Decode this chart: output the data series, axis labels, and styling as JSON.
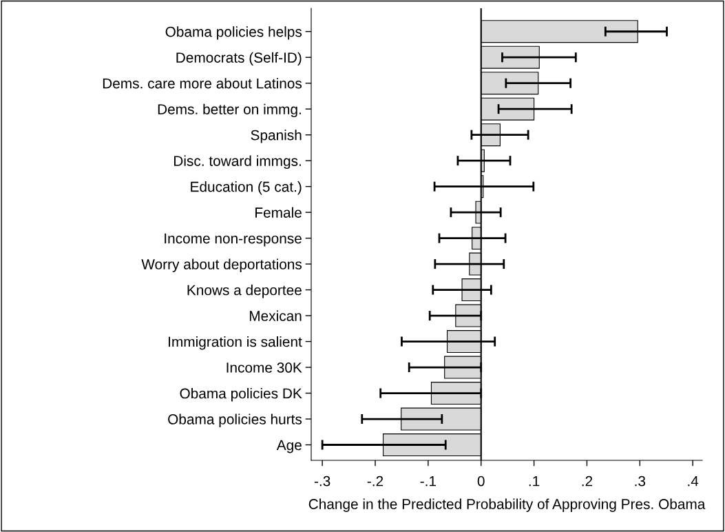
{
  "chart_data": {
    "type": "bar",
    "orientation": "horizontal",
    "xlabel": "Change in the Predicted Probability of Approving Pres. Obama",
    "categories": [
      "Obama policies helps",
      "Democrats (Self-ID)",
      "Dems. care more about Latinos",
      "Dems. better on immg.",
      "Spanish",
      "Disc. toward immgs.",
      "Education (5 cat.)",
      "Female",
      "Income non-response",
      "Worry about deportations",
      "Knows a deportee",
      "Mexican",
      "Immigration is salient",
      "Income 30K",
      "Obama policies DK",
      "Obama policies hurts",
      "Age"
    ],
    "values": [
      0.296,
      0.11,
      0.108,
      0.1,
      0.036,
      0.006,
      0.004,
      -0.01,
      -0.017,
      -0.022,
      -0.036,
      -0.048,
      -0.064,
      -0.069,
      -0.094,
      -0.151,
      -0.185
    ],
    "errors": [
      [
        0.235,
        0.351
      ],
      [
        0.04,
        0.179
      ],
      [
        0.047,
        0.169
      ],
      [
        0.033,
        0.171
      ],
      [
        -0.018,
        0.089
      ],
      [
        -0.044,
        0.055
      ],
      [
        -0.088,
        0.099
      ],
      [
        -0.057,
        0.037
      ],
      [
        -0.079,
        0.046
      ],
      [
        -0.087,
        0.043
      ],
      [
        -0.091,
        0.019
      ],
      [
        -0.097,
        0
      ],
      [
        -0.15,
        0.026
      ],
      [
        -0.136,
        0
      ],
      [
        -0.19,
        0
      ],
      [
        -0.225,
        -0.074
      ],
      [
        -0.3,
        -0.067
      ]
    ],
    "color": "#d9d9d9",
    "xlim": [
      -0.321,
      0.418
    ],
    "xticks": [
      {
        "value": -0.3,
        "label": "-.3"
      },
      {
        "value": -0.2,
        "label": "-.2"
      },
      {
        "value": -0.1,
        "label": "-.1"
      },
      0,
      {
        "value": 0.1,
        "label": ".1"
      },
      {
        "value": 0.2,
        "label": ".2"
      },
      {
        "value": 0.3,
        "label": ".3"
      },
      {
        "value": 0.4,
        "label": ".4"
      }
    ],
    "ref_lines": [
      {
        "axis": "x",
        "value": 0,
        "color": "#000000"
      }
    ],
    "grid": false,
    "legend": false
  }
}
